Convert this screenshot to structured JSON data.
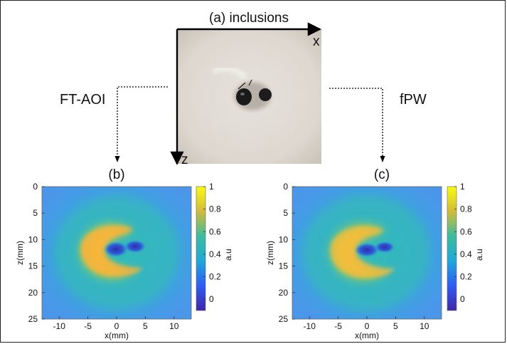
{
  "photo": {
    "title": "(a) inclusions",
    "x_axis_label": "x",
    "z_axis_label": "z"
  },
  "methods": {
    "left": "FT-AOI",
    "right": "fPW"
  },
  "panels": [
    {
      "label": "(b)",
      "xlabel": "x(mm)",
      "ylabel": "z(mm)",
      "x_ticks": [
        "-10",
        "-5",
        "0",
        "5",
        "10"
      ],
      "y_ticks": [
        "0",
        "5",
        "10",
        "15",
        "20",
        "25"
      ],
      "colorbar_ticks": [
        "1",
        "0.8",
        "0.6",
        "0.4",
        "0.2",
        "0"
      ],
      "colorbar_label": "a.u"
    },
    {
      "label": "(c)",
      "xlabel": "x(mm)",
      "ylabel": "z(mm)",
      "x_ticks": [
        "-10",
        "-5",
        "0",
        "5",
        "10"
      ],
      "y_ticks": [
        "0",
        "5",
        "10",
        "15",
        "20",
        "25"
      ],
      "colorbar_ticks": [
        "1",
        "0.8",
        "0.6",
        "0.4",
        "0.2",
        "0"
      ],
      "colorbar_label": "a.u"
    }
  ],
  "colors": {
    "low": "#3e26a8",
    "mid": "#1fb3b8",
    "high": "#f9fb0e",
    "peak": "#fdb53a",
    "background_map": "#4ea7e6"
  }
}
